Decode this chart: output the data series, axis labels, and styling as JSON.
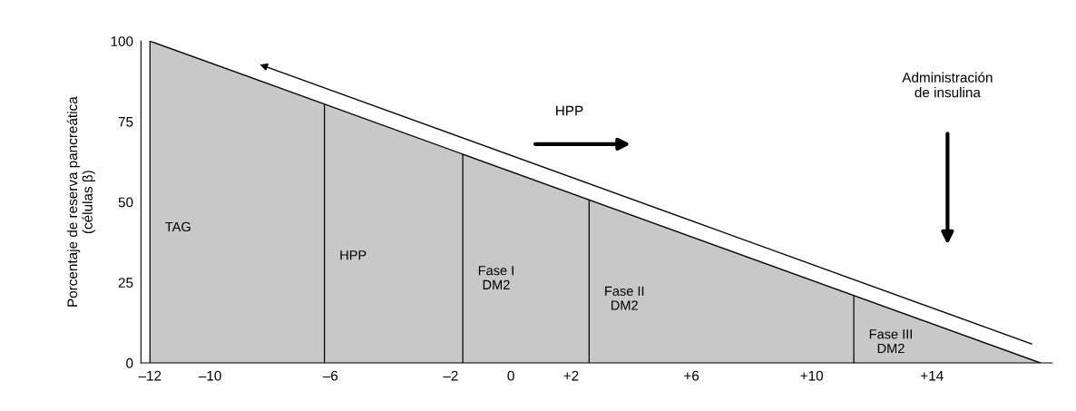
{
  "chart_data": {
    "type": "area",
    "ylabel": "Porcentaje de reserva pancreática\n(células β)",
    "x": [
      -12,
      17.6
    ],
    "series": [
      {
        "color": "#c8c8c8",
        "values": [
          100,
          0
        ]
      }
    ],
    "xlim": [
      -12.3,
      18
    ],
    "ylim": [
      0,
      100
    ],
    "xticks": [
      {
        "value": -12,
        "label": "–12"
      },
      {
        "value": -10,
        "label": "–10"
      },
      {
        "value": -6,
        "label": "–6"
      },
      {
        "value": -2,
        "label": "–2"
      },
      0,
      {
        "value": 2,
        "label": "+2"
      },
      {
        "value": 6,
        "label": "+6"
      },
      {
        "value": 10,
        "label": "+10"
      },
      {
        "value": 14,
        "label": "+14"
      }
    ],
    "yticks": [
      0,
      25,
      50,
      75,
      100
    ],
    "ref_lines": [
      {
        "axis": "x",
        "value": -12,
        "label": "TAG"
      },
      {
        "axis": "x",
        "value": -6.2,
        "label": "HPP"
      },
      {
        "axis": "x",
        "value": -1.6,
        "label": "Fase I\nDM2"
      },
      {
        "axis": "x",
        "value": 2.6,
        "label": "Fase II\nDM2"
      },
      {
        "axis": "x",
        "value": 11.4,
        "label": "Fase III\nDM2"
      }
    ],
    "annotations": [
      "HPP",
      "Administración\nde insulina"
    ],
    "grid": false
  }
}
